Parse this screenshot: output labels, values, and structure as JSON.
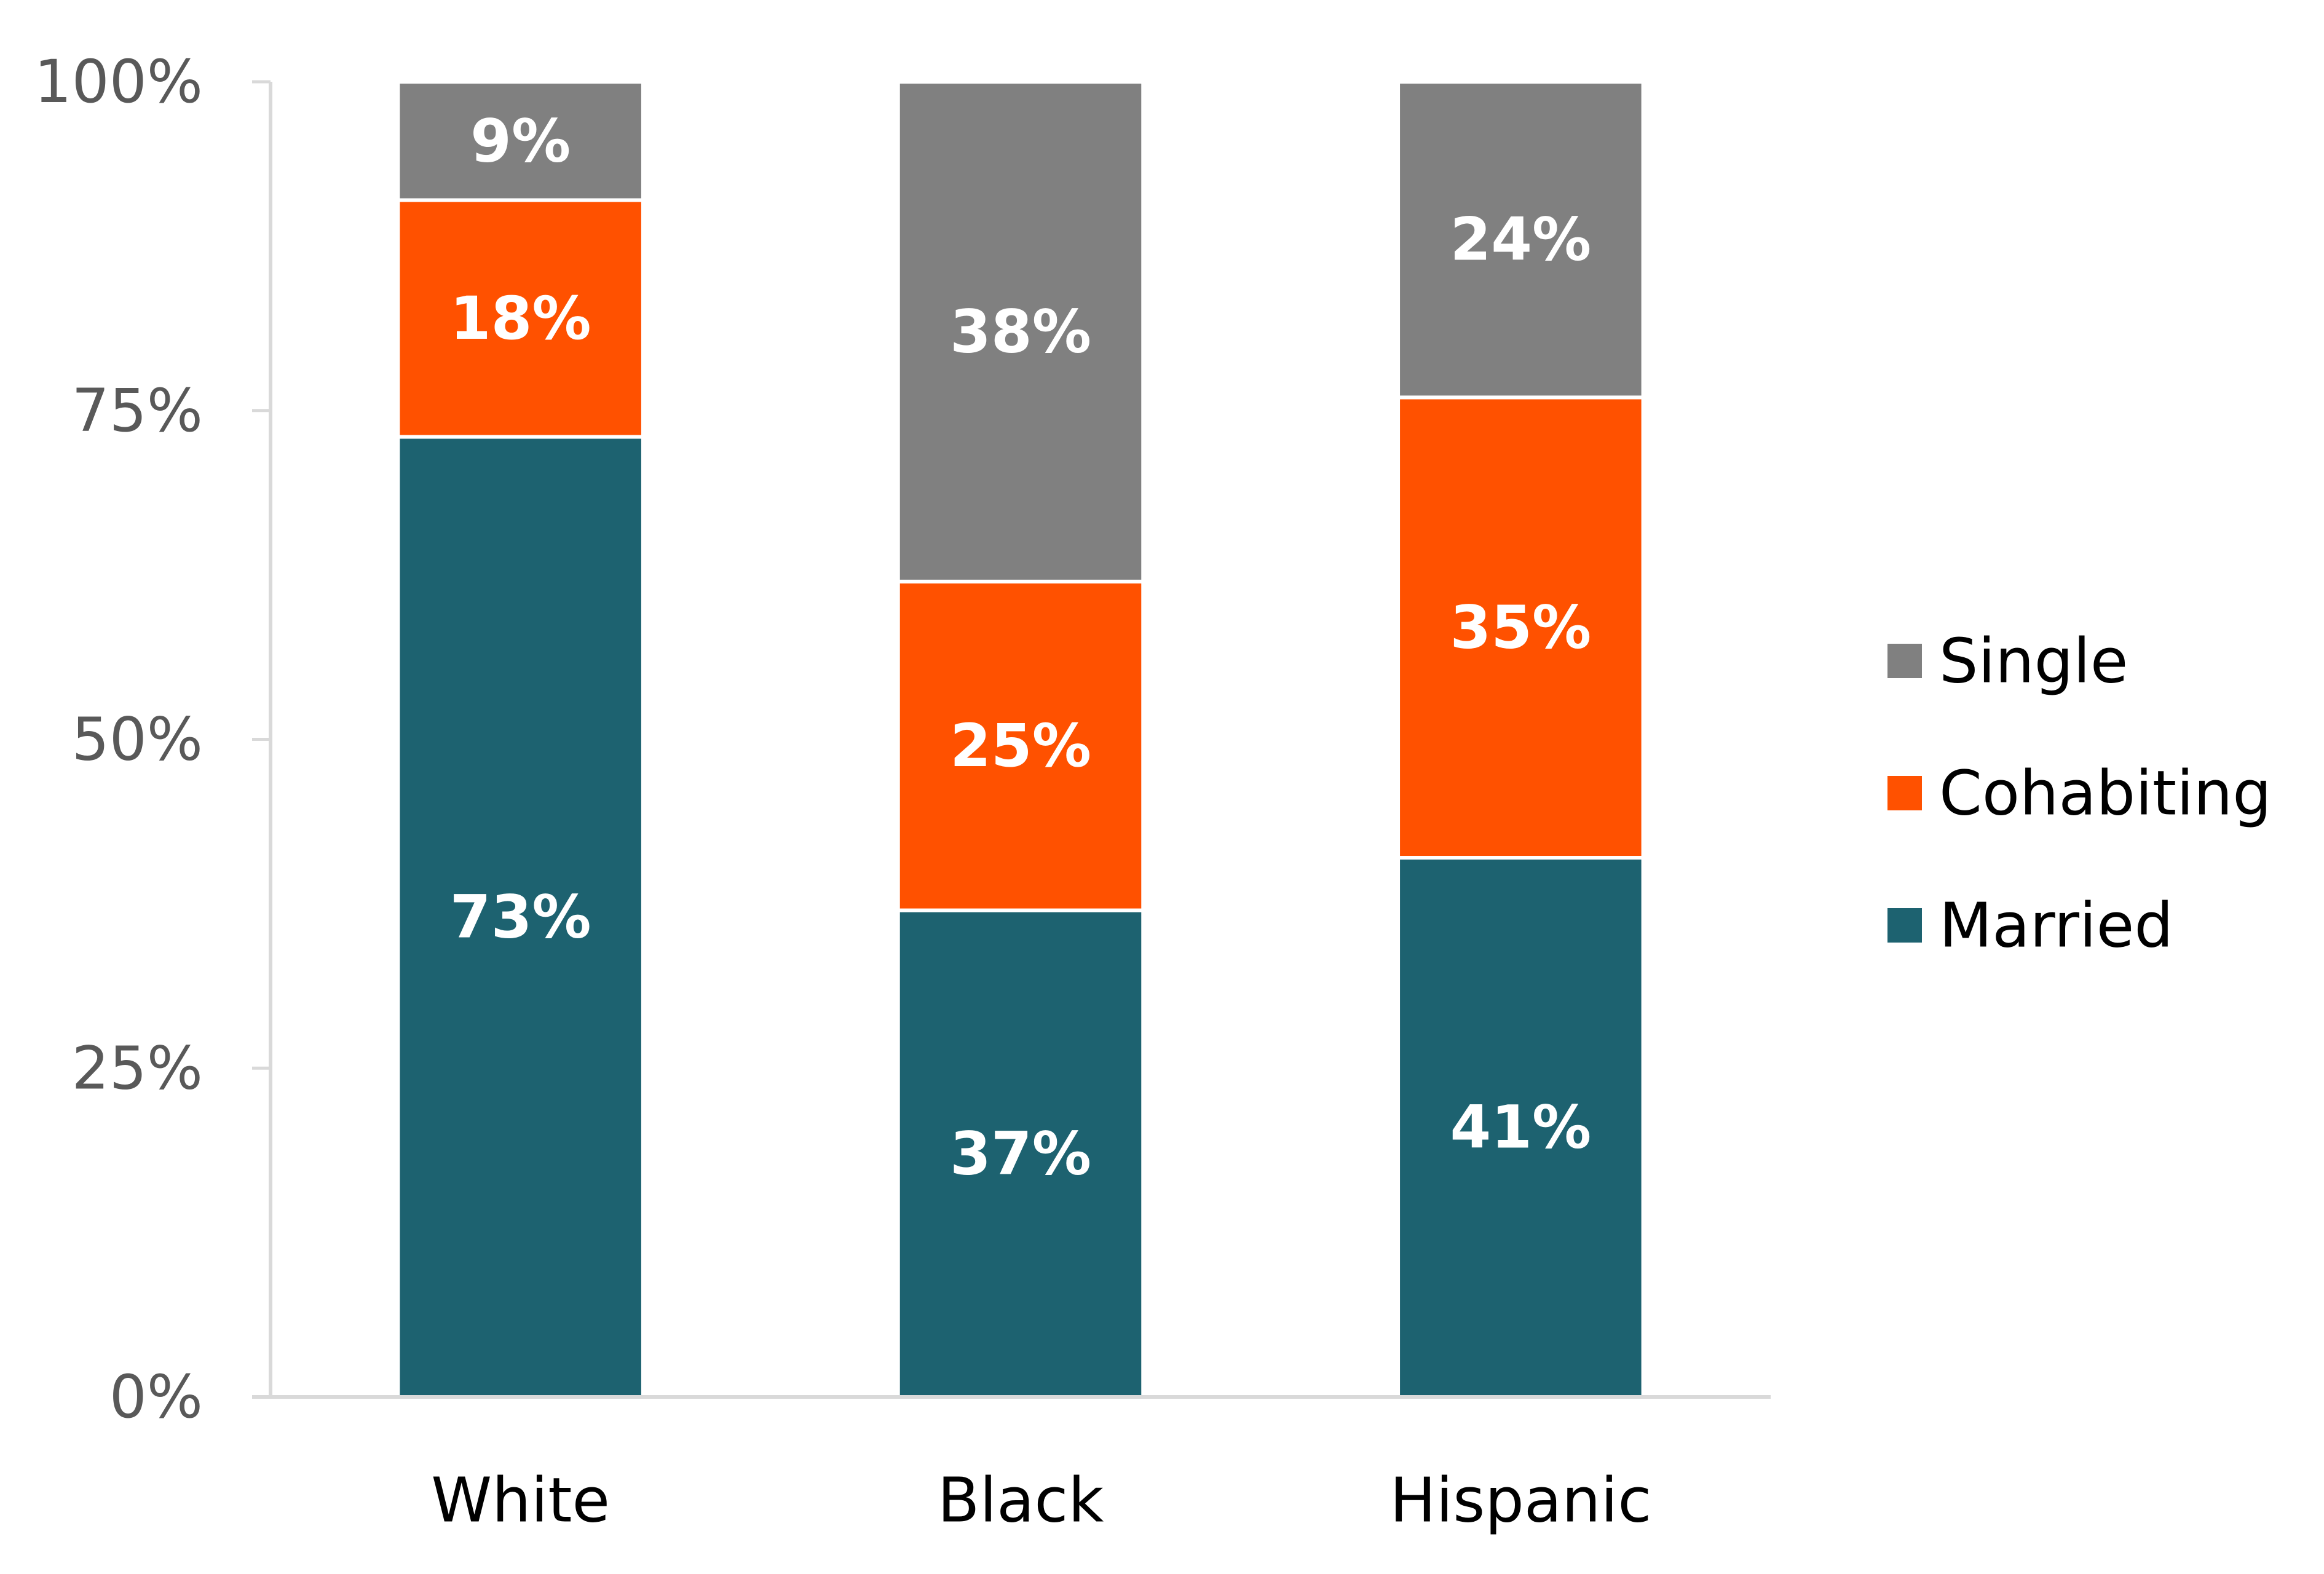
{
  "chart_data": {
    "type": "bar",
    "stacked": true,
    "categories": [
      "White",
      "Black",
      "Hispanic"
    ],
    "series": [
      {
        "name": "Married",
        "values": [
          73,
          37,
          41
        ],
        "labels": [
          "73%",
          "37%",
          "41%"
        ],
        "color": "#1d6270"
      },
      {
        "name": "Cohabiting",
        "values": [
          18,
          25,
          35
        ],
        "labels": [
          "18%",
          "25%",
          "35%"
        ],
        "color": "#ff5100"
      },
      {
        "name": "Single",
        "values": [
          9,
          38,
          24
        ],
        "labels": [
          "9%",
          "38%",
          "24%"
        ],
        "color": "#808080"
      }
    ],
    "ylim": [
      0,
      100
    ],
    "yticks": [
      0,
      25,
      50,
      75,
      100
    ],
    "ytick_labels": [
      "0%",
      "25%",
      "50%",
      "75%",
      "100%"
    ],
    "title": "",
    "xlabel": "",
    "ylabel": "",
    "legend": {
      "position": "right",
      "order": [
        "Single",
        "Cohabiting",
        "Married"
      ]
    },
    "grid": false,
    "axis_color": "#d9d9d9"
  }
}
